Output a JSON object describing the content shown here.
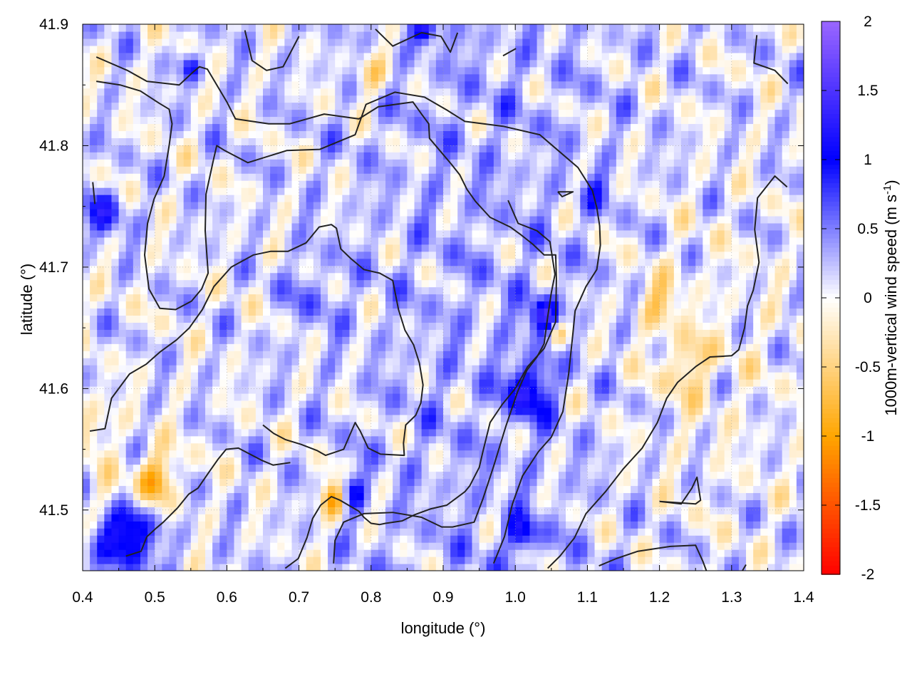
{
  "chart_data": {
    "type": "heatmap",
    "title": "",
    "xlabel": "longitude (°)",
    "ylabel": "latitude (°)",
    "xlim": [
      0.4,
      1.4
    ],
    "ylim": [
      41.45,
      41.9
    ],
    "x_ticks": [
      {
        "value": 0.4,
        "label": "0.4"
      },
      {
        "value": 0.5,
        "label": "0.5"
      },
      {
        "value": 0.6,
        "label": "0.6"
      },
      {
        "value": 0.7,
        "label": "0.7"
      },
      {
        "value": 0.8,
        "label": "0.8"
      },
      {
        "value": 0.9,
        "label": "0.9"
      },
      {
        "value": 1.0,
        "label": "1.0"
      },
      {
        "value": 1.1,
        "label": "1.1"
      },
      {
        "value": 1.2,
        "label": "1.2"
      },
      {
        "value": 1.3,
        "label": "1.3"
      },
      {
        "value": 1.4,
        "label": "1.4"
      }
    ],
    "y_ticks": [
      {
        "value": 41.5,
        "label": "41.5"
      },
      {
        "value": 41.6,
        "label": "41.6"
      },
      {
        "value": 41.7,
        "label": "41.7"
      },
      {
        "value": 41.8,
        "label": "41.8"
      },
      {
        "value": 41.9,
        "label": "41.9"
      }
    ],
    "grid": true,
    "colorbar": {
      "label": "1000m-vertical wind speed (m s",
      "label_superscript": "-1",
      "label_suffix": ")",
      "range": [
        -2,
        2
      ],
      "ticks": [
        {
          "value": 2,
          "label": "2"
        },
        {
          "value": 1.5,
          "label": "1.5"
        },
        {
          "value": 1,
          "label": "1"
        },
        {
          "value": 0.5,
          "label": "0.5"
        },
        {
          "value": 0,
          "label": "0"
        },
        {
          "value": -0.5,
          "label": "-0.5"
        },
        {
          "value": -1,
          "label": "-1"
        },
        {
          "value": -1.5,
          "label": "-1.5"
        },
        {
          "value": -2,
          "label": "-2"
        }
      ],
      "colors": [
        {
          "value": -2,
          "color": "#ff0000"
        },
        {
          "value": -1,
          "color": "#ffa500"
        },
        {
          "value": 0,
          "color": "#ffffff"
        },
        {
          "value": 1,
          "color": "#0000ff"
        },
        {
          "value": 2,
          "color": "#9a66ff"
        }
      ]
    },
    "hotspots": [
      {
        "lon": 0.455,
        "lat": 41.485,
        "value": 1.3,
        "r": 0.045
      },
      {
        "lon": 0.5,
        "lat": 41.525,
        "value": -1.1,
        "r": 0.03
      },
      {
        "lon": 0.44,
        "lat": 41.505,
        "value": -0.9,
        "r": 0.03
      },
      {
        "lon": 0.43,
        "lat": 41.745,
        "value": 0.9,
        "r": 0.025
      },
      {
        "lon": 0.75,
        "lat": 41.51,
        "value": -1.4,
        "r": 0.02
      },
      {
        "lon": 0.77,
        "lat": 41.515,
        "value": 1.0,
        "r": 0.02
      },
      {
        "lon": 1.04,
        "lat": 41.66,
        "value": 1.2,
        "r": 0.02
      },
      {
        "lon": 1.06,
        "lat": 41.645,
        "value": -0.8,
        "r": 0.015
      },
      {
        "lon": 1.02,
        "lat": 41.6,
        "value": 1.0,
        "r": 0.03
      },
      {
        "lon": 1.01,
        "lat": 41.48,
        "value": 0.9,
        "r": 0.02
      },
      {
        "lon": 0.55,
        "lat": 41.865,
        "value": 0.8,
        "r": 0.015
      },
      {
        "lon": 0.875,
        "lat": 41.895,
        "value": 0.9,
        "r": 0.015
      },
      {
        "lon": 0.8,
        "lat": 41.86,
        "value": -0.6,
        "r": 0.025
      },
      {
        "lon": 1.24,
        "lat": 41.62,
        "value": -0.6,
        "r": 0.03
      },
      {
        "lon": 1.2,
        "lat": 41.67,
        "value": -0.5,
        "r": 0.03
      },
      {
        "lon": 1.11,
        "lat": 41.76,
        "value": 0.5,
        "r": 0.02
      },
      {
        "lon": 0.41,
        "lat": 41.57,
        "value": -0.5,
        "r": 0.03
      },
      {
        "lon": 0.72,
        "lat": 41.68,
        "value": 0.3,
        "r": 0.04
      }
    ],
    "contours": [
      [
        [
          0.419,
          41.873
        ],
        [
          0.462,
          41.862
        ],
        [
          0.489,
          41.853
        ],
        [
          0.534,
          41.85
        ],
        [
          0.552,
          41.86
        ],
        [
          0.562,
          41.865
        ],
        [
          0.573,
          41.863
        ],
        [
          0.6,
          41.836
        ],
        [
          0.612,
          41.822
        ],
        [
          0.658,
          41.818
        ],
        [
          0.687,
          41.818
        ],
        [
          0.735,
          41.826
        ],
        [
          0.783,
          41.822
        ],
        [
          0.81,
          41.832
        ],
        [
          0.858,
          41.836
        ],
        [
          0.87,
          41.826
        ],
        [
          0.88,
          41.818
        ],
        [
          0.881,
          41.806
        ],
        [
          0.911,
          41.785
        ],
        [
          0.923,
          41.776
        ],
        [
          0.933,
          41.764
        ],
        [
          0.945,
          41.754
        ],
        [
          0.965,
          41.741
        ],
        [
          0.993,
          41.733
        ],
        [
          1.007,
          41.727
        ],
        [
          1.024,
          41.719
        ],
        [
          1.04,
          41.71
        ],
        [
          1.056,
          41.71
        ],
        [
          1.057,
          41.69
        ],
        [
          1.056,
          41.655
        ],
        [
          1.04,
          41.633
        ],
        [
          1.017,
          41.618
        ],
        [
          1.0,
          41.6
        ],
        [
          0.982,
          41.587
        ],
        [
          0.965,
          41.572
        ],
        [
          0.955,
          41.548
        ],
        [
          0.95,
          41.535
        ],
        [
          0.937,
          41.52
        ],
        [
          0.93,
          41.515
        ],
        [
          0.905,
          41.504
        ],
        [
          0.883,
          41.501
        ],
        [
          0.86,
          41.496
        ],
        [
          0.843,
          41.491
        ],
        [
          0.82,
          41.489
        ],
        [
          0.812,
          41.488
        ],
        [
          0.8,
          41.489
        ],
        [
          0.79,
          41.494
        ],
        [
          0.783,
          41.499
        ],
        [
          0.757,
          41.508
        ],
        [
          0.745,
          41.511
        ],
        [
          0.73,
          41.504
        ],
        [
          0.719,
          41.493
        ],
        [
          0.711,
          41.477
        ],
        [
          0.699,
          41.46
        ],
        [
          0.681,
          41.452
        ]
      ],
      [
        [
          0.419,
          41.853
        ],
        [
          0.452,
          41.85
        ],
        [
          0.48,
          41.845
        ],
        [
          0.506,
          41.835
        ],
        [
          0.52,
          41.83
        ],
        [
          0.524,
          41.818
        ],
        [
          0.52,
          41.8
        ],
        [
          0.513,
          41.775
        ],
        [
          0.499,
          41.756
        ],
        [
          0.49,
          41.736
        ],
        [
          0.486,
          41.71
        ],
        [
          0.492,
          41.682
        ],
        [
          0.507,
          41.666
        ],
        [
          0.529,
          41.665
        ],
        [
          0.551,
          41.672
        ],
        [
          0.565,
          41.682
        ],
        [
          0.574,
          41.695
        ],
        [
          0.57,
          41.73
        ],
        [
          0.571,
          41.76
        ],
        [
          0.582,
          41.79
        ],
        [
          0.586,
          41.8
        ],
        [
          0.597,
          41.796
        ],
        [
          0.629,
          41.786
        ],
        [
          0.683,
          41.796
        ],
        [
          0.729,
          41.797
        ],
        [
          0.778,
          41.809
        ],
        [
          0.793,
          41.834
        ],
        [
          0.833,
          41.844
        ],
        [
          0.874,
          41.84
        ],
        [
          0.906,
          41.829
        ],
        [
          0.93,
          41.82
        ],
        [
          0.983,
          41.816
        ],
        [
          1.034,
          41.809
        ],
        [
          1.087,
          41.782
        ],
        [
          1.107,
          41.763
        ],
        [
          1.113,
          41.749
        ],
        [
          1.117,
          41.734
        ],
        [
          1.118,
          41.718
        ],
        [
          1.113,
          41.698
        ],
        [
          1.098,
          41.684
        ],
        [
          1.083,
          41.664
        ],
        [
          1.08,
          41.646
        ],
        [
          1.074,
          41.612
        ],
        [
          1.066,
          41.581
        ],
        [
          1.05,
          41.56
        ],
        [
          1.032,
          41.548
        ],
        [
          1.01,
          41.528
        ],
        [
          0.996,
          41.505
        ],
        [
          0.985,
          41.478
        ],
        [
          0.97,
          41.456
        ]
      ],
      [
        [
          0.41,
          41.565
        ],
        [
          0.431,
          41.567
        ],
        [
          0.44,
          41.592
        ],
        [
          0.465,
          41.612
        ],
        [
          0.488,
          41.62
        ],
        [
          0.507,
          41.63
        ],
        [
          0.53,
          41.64
        ],
        [
          0.548,
          41.65
        ],
        [
          0.566,
          41.665
        ],
        [
          0.582,
          41.684
        ],
        [
          0.606,
          41.7
        ],
        [
          0.637,
          41.71
        ],
        [
          0.661,
          41.713
        ],
        [
          0.685,
          41.713
        ],
        [
          0.71,
          41.72
        ],
        [
          0.728,
          41.733
        ],
        [
          0.745,
          41.735
        ],
        [
          0.752,
          41.732
        ],
        [
          0.758,
          41.715
        ],
        [
          0.772,
          41.707
        ],
        [
          0.79,
          41.698
        ],
        [
          0.812,
          41.695
        ],
        [
          0.83,
          41.689
        ],
        [
          0.838,
          41.665
        ],
        [
          0.847,
          41.648
        ],
        [
          0.859,
          41.636
        ],
        [
          0.867,
          41.621
        ],
        [
          0.872,
          41.603
        ],
        [
          0.869,
          41.588
        ],
        [
          0.862,
          41.578
        ],
        [
          0.848,
          41.57
        ],
        [
          0.845,
          41.555
        ],
        [
          0.846,
          41.545
        ],
        [
          0.813,
          41.546
        ],
        [
          0.796,
          41.551
        ],
        [
          0.785,
          41.565
        ],
        [
          0.778,
          41.572
        ],
        [
          0.762,
          41.55
        ],
        [
          0.737,
          41.545
        ],
        [
          0.725,
          41.549
        ],
        [
          0.703,
          41.554
        ],
        [
          0.681,
          41.558
        ],
        [
          0.665,
          41.563
        ],
        [
          0.65,
          41.57
        ]
      ],
      [
        [
          0.46,
          41.462
        ],
        [
          0.481,
          41.466
        ],
        [
          0.489,
          41.478
        ],
        [
          0.502,
          41.485
        ],
        [
          0.512,
          41.49
        ],
        [
          0.532,
          41.502
        ],
        [
          0.547,
          41.513
        ],
        [
          0.56,
          41.518
        ],
        [
          0.575,
          41.531
        ],
        [
          0.588,
          41.542
        ],
        [
          0.599,
          41.55
        ],
        [
          0.616,
          41.551
        ],
        [
          0.632,
          41.546
        ],
        [
          0.648,
          41.541
        ],
        [
          0.664,
          41.537
        ],
        [
          0.688,
          41.539
        ]
      ],
      [
        [
          0.748,
          41.456
        ],
        [
          0.75,
          41.475
        ],
        [
          0.762,
          41.49
        ],
        [
          0.79,
          41.497
        ],
        [
          0.83,
          41.498
        ],
        [
          0.87,
          41.494
        ],
        [
          0.898,
          41.486
        ],
        [
          0.913,
          41.486
        ],
        [
          0.943,
          41.49
        ],
        [
          0.955,
          41.509
        ],
        [
          0.97,
          41.536
        ],
        [
          0.987,
          41.569
        ],
        [
          1.003,
          41.597
        ],
        [
          1.016,
          41.615
        ],
        [
          1.03,
          41.626
        ],
        [
          1.04,
          41.637
        ],
        [
          1.045,
          41.659
        ],
        [
          1.05,
          41.679
        ],
        [
          1.055,
          41.694
        ],
        [
          1.048,
          41.721
        ],
        [
          1.03,
          41.73
        ],
        [
          1.004,
          41.736
        ],
        [
          0.99,
          41.755
        ]
      ],
      [
        [
          0.625,
          41.895
        ],
        [
          0.635,
          41.87
        ],
        [
          0.655,
          41.862
        ],
        [
          0.678,
          41.865
        ],
        [
          0.7,
          41.89
        ]
      ],
      [
        [
          0.806,
          41.896
        ],
        [
          0.83,
          41.882
        ],
        [
          0.87,
          41.893
        ],
        [
          0.897,
          41.89
        ],
        [
          0.91,
          41.877
        ],
        [
          0.92,
          41.893
        ]
      ],
      [
        [
          0.983,
          41.874
        ],
        [
          1.001,
          41.88
        ]
      ],
      [
        [
          1.335,
          41.891
        ],
        [
          1.331,
          41.868
        ],
        [
          1.36,
          41.862
        ],
        [
          1.378,
          41.851
        ]
      ],
      [
        [
          0.414,
          41.77
        ],
        [
          0.417,
          41.752
        ]
      ],
      [
        [
          1.059,
          41.762
        ],
        [
          1.073,
          41.762
        ],
        [
          1.08,
          41.762
        ],
        [
          1.065,
          41.758
        ],
        [
          1.059,
          41.762
        ]
      ],
      [
        [
          1.377,
          41.766
        ],
        [
          1.36,
          41.775
        ],
        [
          1.336,
          41.757
        ],
        [
          1.332,
          41.731
        ],
        [
          1.338,
          41.704
        ],
        [
          1.33,
          41.681
        ],
        [
          1.322,
          41.668
        ],
        [
          1.318,
          41.65
        ],
        [
          1.31,
          41.632
        ],
        [
          1.3,
          41.627
        ],
        [
          1.27,
          41.626
        ],
        [
          1.25,
          41.618
        ],
        [
          1.225,
          41.605
        ],
        [
          1.21,
          41.592
        ],
        [
          1.197,
          41.572
        ],
        [
          1.176,
          41.551
        ],
        [
          1.15,
          41.534
        ],
        [
          1.125,
          41.515
        ],
        [
          1.098,
          41.497
        ],
        [
          1.082,
          41.477
        ],
        [
          1.062,
          41.462
        ],
        [
          1.045,
          41.452
        ]
      ],
      [
        [
          1.2,
          41.507
        ],
        [
          1.23,
          41.505
        ],
        [
          1.245,
          41.518
        ],
        [
          1.252,
          41.527
        ],
        [
          1.257,
          41.508
        ],
        [
          1.25,
          41.505
        ],
        [
          1.2,
          41.507
        ]
      ],
      [
        [
          1.116,
          41.454
        ],
        [
          1.14,
          41.46
        ],
        [
          1.17,
          41.466
        ],
        [
          1.215,
          41.47
        ],
        [
          1.25,
          41.471
        ],
        [
          1.26,
          41.458
        ],
        [
          1.265,
          41.45
        ]
      ],
      [
        [
          1.315,
          41.45
        ],
        [
          1.32,
          41.455
        ]
      ]
    ]
  }
}
